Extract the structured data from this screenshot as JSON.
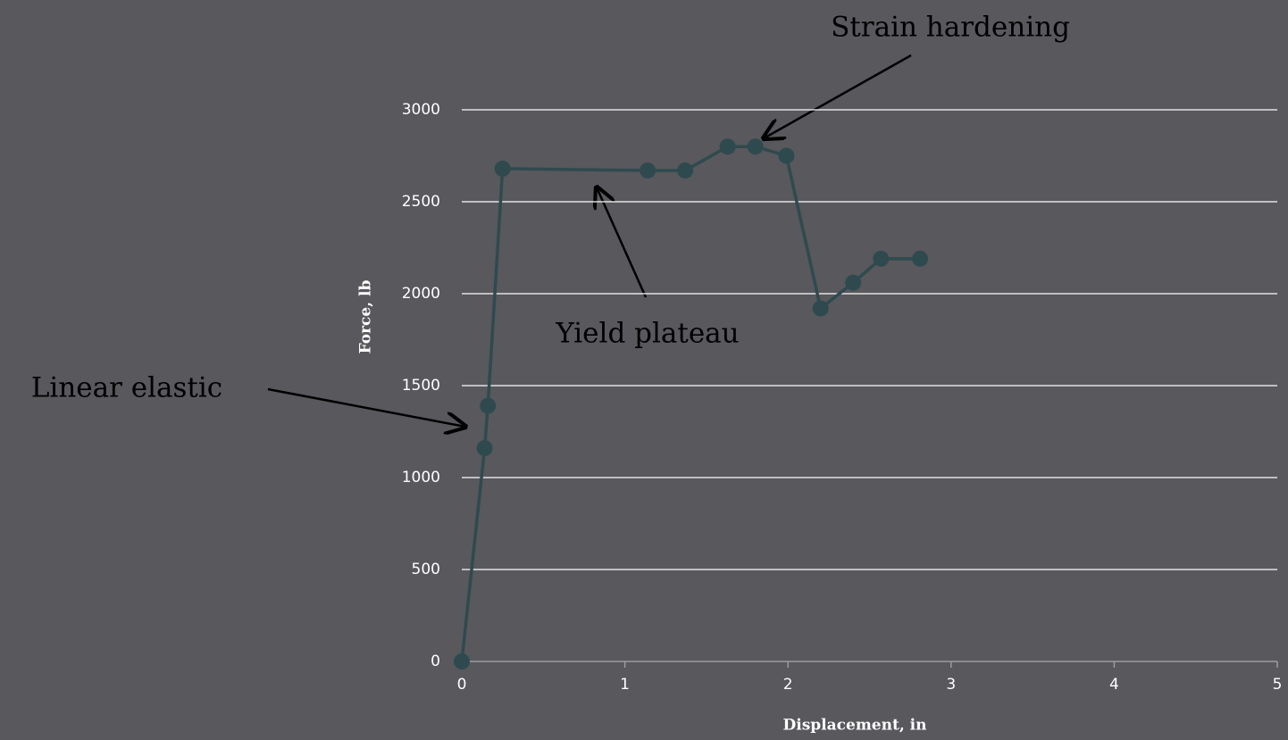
{
  "chart_data": {
    "type": "line",
    "xlabel": "Displacement, in",
    "ylabel": "Force, lb",
    "x": [
      0,
      0.14,
      0.16,
      0.25,
      1.14,
      1.37,
      1.63,
      1.8,
      1.99,
      2.2,
      2.4,
      2.57,
      2.81
    ],
    "values": [
      0,
      1160,
      1390,
      2680,
      2670,
      2670,
      2800,
      2800,
      2750,
      1920,
      2060,
      2190,
      2190
    ],
    "color": "#2f4a4f",
    "xlim": [
      0,
      5
    ],
    "xticks": [
      0,
      1,
      2,
      3,
      4,
      5
    ],
    "ylim": [
      0,
      3000
    ],
    "yticks": [
      0,
      500,
      1000,
      1500,
      2000,
      2500,
      3000
    ],
    "grid": true,
    "annotations": [
      "Strain hardening",
      "Yield plateau",
      "Linear elastic"
    ]
  }
}
